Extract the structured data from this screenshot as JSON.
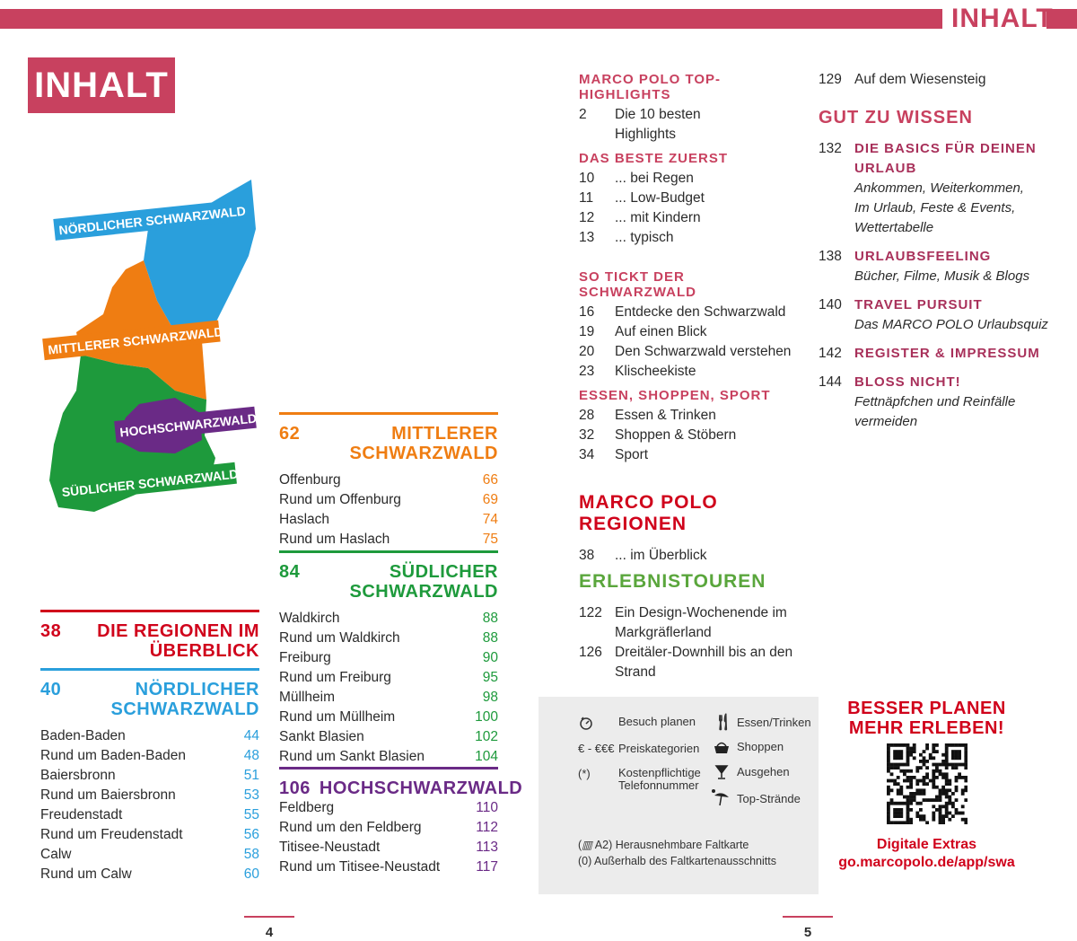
{
  "header": {
    "label": "INHALT"
  },
  "title": "INHALT",
  "map": {
    "labels": [
      "NÖRDLICHER SCHWARZWALD",
      "MITTLERER SCHWARZWALD",
      "HOCHSCHWARZWALD",
      "SÜDLICHER SCHWARZWALD"
    ],
    "colors": {
      "north": "#2a9fdc",
      "middle": "#ef7d12",
      "south": "#1e9a3c",
      "high": "#6a2a86"
    }
  },
  "regions": [
    {
      "num": "38",
      "title": "DIE REGIONEN IM\nÜBERBLICK",
      "color": "#d0021b",
      "items": []
    },
    {
      "num": "40",
      "title": "NÖRDLICHER\nSCHWARZWALD",
      "color": "#2a9fdc",
      "items": [
        {
          "name": "Baden-Baden",
          "page": "44"
        },
        {
          "name": "Rund um Baden-Baden",
          "page": "48"
        },
        {
          "name": "Baiersbronn",
          "page": "51"
        },
        {
          "name": "Rund um Baiersbronn",
          "page": "53"
        },
        {
          "name": "Freudenstadt",
          "page": "55"
        },
        {
          "name": "Rund um Freudenstadt",
          "page": "56"
        },
        {
          "name": "Calw",
          "page": "58"
        },
        {
          "name": "Rund um Calw",
          "page": "60"
        }
      ]
    },
    {
      "num": "62",
      "title": "MITTLERER\nSCHWARZWALD",
      "color": "#ef7d12",
      "items": [
        {
          "name": "Offenburg",
          "page": "66"
        },
        {
          "name": "Rund um Offenburg",
          "page": "69"
        },
        {
          "name": "Haslach",
          "page": "74"
        },
        {
          "name": "Rund um Haslach",
          "page": "75"
        }
      ]
    },
    {
      "num": "84",
      "title": "SÜDLICHER\nSCHWARZWALD",
      "color": "#1e9a3c",
      "items": [
        {
          "name": "Waldkirch",
          "page": "88"
        },
        {
          "name": "Rund um Waldkirch",
          "page": "88"
        },
        {
          "name": "Freiburg",
          "page": "90"
        },
        {
          "name": "Rund um Freiburg",
          "page": "95"
        },
        {
          "name": "Müllheim",
          "page": "98"
        },
        {
          "name": "Rund um Müllheim",
          "page": "100"
        },
        {
          "name": "Sankt Blasien",
          "page": "102"
        },
        {
          "name": "Rund um Sankt Blasien",
          "page": "104"
        }
      ]
    },
    {
      "num": "106",
      "title": "HOCHSCHWARZWALD",
      "color": "#6a2a86",
      "items": [
        {
          "name": "Feldberg",
          "page": "110"
        },
        {
          "name": "Rund um den Feldberg",
          "page": "112"
        },
        {
          "name": "Titisee-Neustadt",
          "page": "113"
        },
        {
          "name": "Rund um Titisee-Neustadt",
          "page": "117"
        }
      ]
    }
  ],
  "sections": [
    {
      "heading": "MARCO POLO TOP-HIGHLIGHTS",
      "entries": [
        {
          "n": "2",
          "l": "Die 10 besten\nHighlights"
        }
      ]
    },
    {
      "heading": "DAS BESTE ZUERST",
      "entries": [
        {
          "n": "10",
          "l": "... bei Regen"
        },
        {
          "n": "11",
          "l": "... Low-Budget"
        },
        {
          "n": "12",
          "l": "... mit Kindern"
        },
        {
          "n": "13",
          "l": "... typisch"
        }
      ]
    },
    {
      "heading": "SO TICKT DER SCHWARZWALD",
      "entries": [
        {
          "n": "16",
          "l": "Entdecke den Schwarzwald"
        },
        {
          "n": "19",
          "l": "Auf einen Blick"
        },
        {
          "n": "20",
          "l": "Den Schwarzwald verstehen"
        },
        {
          "n": "23",
          "l": "Klischeekiste"
        }
      ]
    },
    {
      "heading": "ESSEN, SHOPPEN, SPORT",
      "entries": [
        {
          "n": "28",
          "l": "Essen & Trinken"
        },
        {
          "n": "32",
          "l": "Shoppen & Stöbern"
        },
        {
          "n": "34",
          "l": "Sport"
        }
      ]
    },
    {
      "heading": "MARCO POLO REGIONEN",
      "color": "#d0021b",
      "entries": [
        {
          "n": "38",
          "l": "... im Überblick"
        }
      ]
    },
    {
      "heading": "ERLEBNISTOUREN",
      "color": "#5aa63c",
      "entries": [
        {
          "n": "122",
          "l": "Ein Design-Wochenende im\nMarkgräflerland"
        },
        {
          "n": "126",
          "l": "Dreitäler-Downhill bis an den\nStrand"
        }
      ]
    }
  ],
  "col4": {
    "first": {
      "n": "129",
      "l": "Auf dem Wiesensteig"
    },
    "heading": "GUT ZU WISSEN",
    "entries": [
      {
        "n": "132",
        "t": "DIE BASICS FÜR DEINEN\nURLAUB",
        "s": "Ankommen, Weiterkommen,\nIm Urlaub, Feste & Events,\nWettertabelle"
      },
      {
        "n": "138",
        "t": "URLAUBSFEELING",
        "s": "Bücher, Filme, Musik & Blogs"
      },
      {
        "n": "140",
        "t": "TRAVEL PURSUIT",
        "s": "Das MARCO POLO Urlaubsquiz"
      },
      {
        "n": "142",
        "t": "REGISTER & IMPRESSUM",
        "s": ""
      },
      {
        "n": "144",
        "t": "BLOSS NICHT!",
        "s": "Fettnäpfchen und Reinfälle\nvermeiden"
      }
    ]
  },
  "legend": {
    "items": [
      {
        "sym": "clock-icon",
        "label": "Besuch planen"
      },
      {
        "sym": "€ - €€€",
        "label": "Preiskategorien"
      },
      {
        "sym": "(*)",
        "label": "Kostenpflichtige\nTelefonnummer"
      },
      {
        "sym": "cutlery-icon",
        "label": "Essen/Trinken"
      },
      {
        "sym": "basket-icon",
        "label": "Shoppen"
      },
      {
        "sym": "cocktail-icon",
        "label": "Ausgehen"
      },
      {
        "sym": "beach-umbrella-icon",
        "label": "Top-Strände"
      }
    ],
    "map_symbol": "A2) Herausnehmbare Faltkarte",
    "outside": "(0) Außerhalb des Faltkartenausschnitts"
  },
  "promo": {
    "line1": "BESSER PLANEN",
    "line2": "MEHR ERLEBEN!",
    "extras": "Digitale Extras",
    "url": "go.marcopolo.de/app/swa"
  },
  "pages": {
    "left": "4",
    "right": "5"
  }
}
